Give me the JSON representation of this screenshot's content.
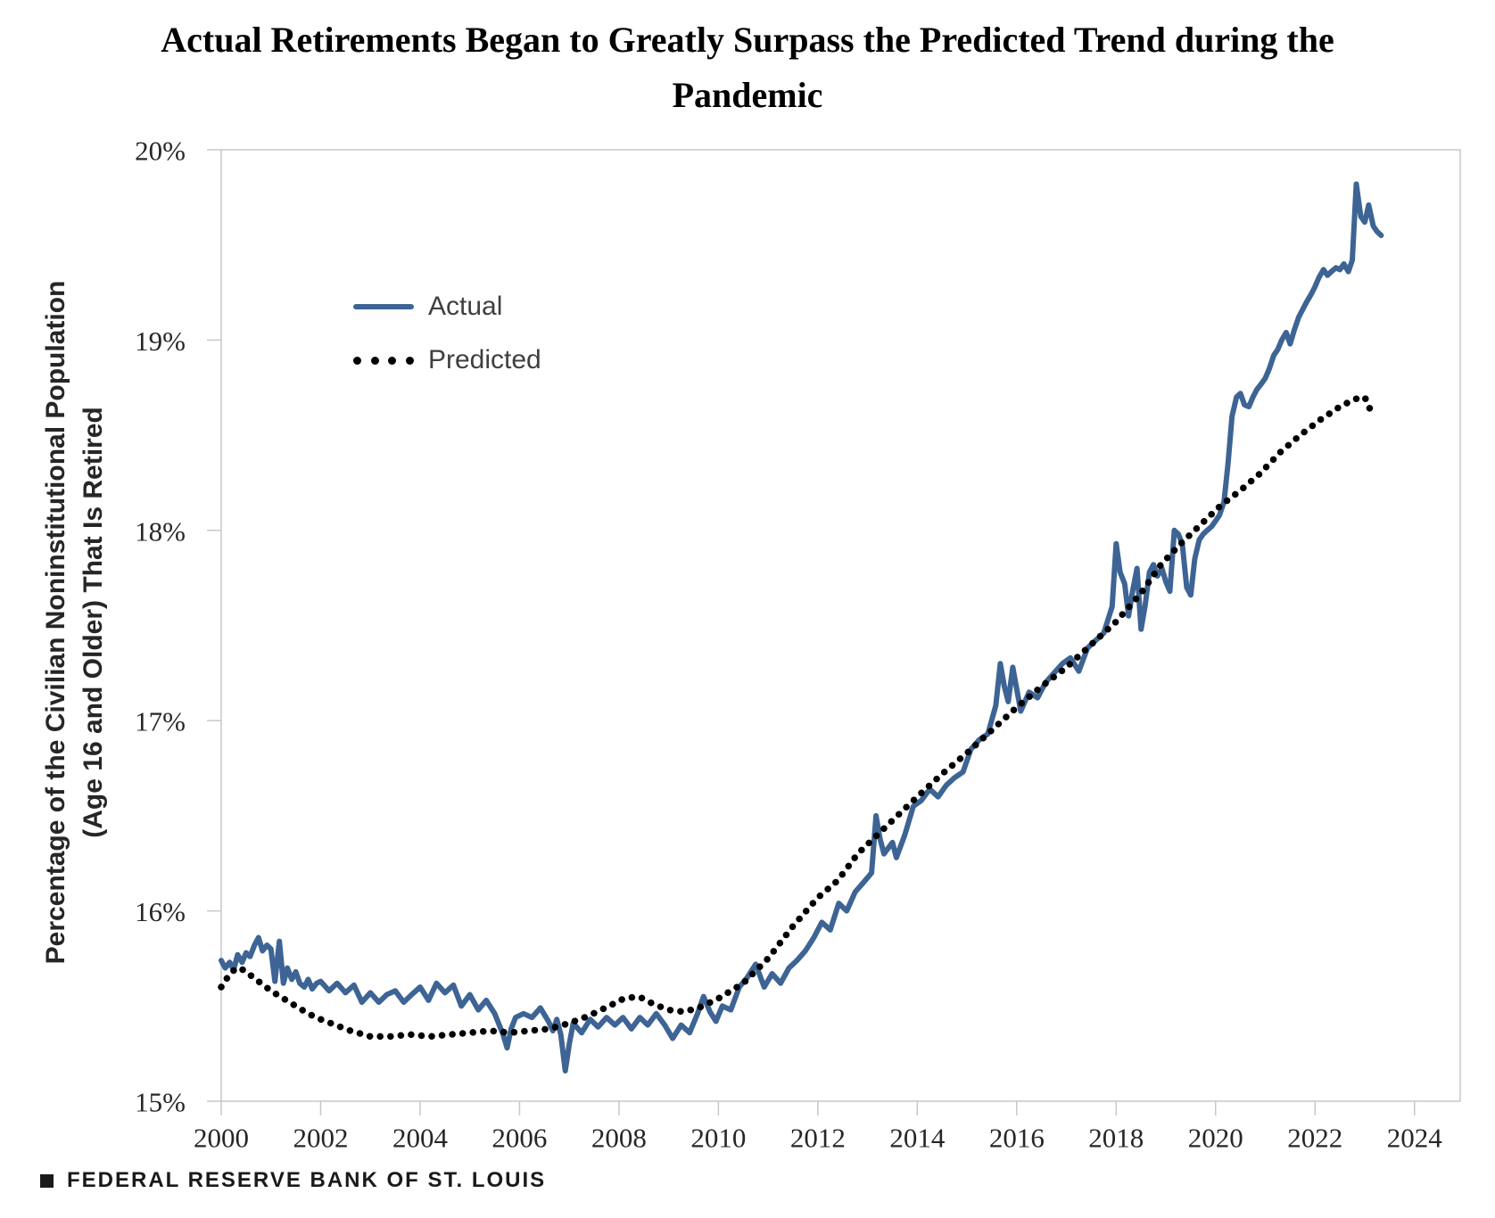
{
  "header": {
    "title": "Actual Retirements Began to Greatly Surpass the Predicted Trend during the Pandemic",
    "title_lines": [
      "Actual Retirements Began to Greatly Surpass the Predicted Trend during the",
      "Pandemic"
    ]
  },
  "footer": {
    "source_label": "FEDERAL RESERVE BANK OF ST. LOUIS"
  },
  "colors": {
    "actual_line": "#3d6494",
    "predicted_line": "#000000",
    "axis": "#c8c8c8",
    "tick_label": "#262626",
    "legend_text": "#3f3f3f",
    "title_text": "#000000"
  },
  "chart_data": {
    "type": "line",
    "title": "Actual Retirements Began to Greatly Surpass the Predicted Trend during the Pandemic",
    "xlabel": "",
    "ylabel": "Percentage of the Civilian Noninstitutional Population (Age 16 and Older) That Is Retired",
    "ylabel_lines": [
      "Percentage of the Civilian Noninstitutional  Population",
      "(Age 16 and Older) That Is Retired"
    ],
    "xlim": [
      2000,
      2024.92
    ],
    "ylim": [
      15,
      20
    ],
    "grid": false,
    "legend_position": "inside-upper-left",
    "x_ticks": [
      2000,
      2002,
      2004,
      2006,
      2008,
      2010,
      2012,
      2014,
      2016,
      2018,
      2020,
      2022,
      2024
    ],
    "x_tick_labels": [
      "2000",
      "2002",
      "2004",
      "2006",
      "2008",
      "2010",
      "2012",
      "2014",
      "2016",
      "2018",
      "2020",
      "2022",
      "2024"
    ],
    "y_ticks": [
      15,
      16,
      17,
      18,
      19,
      20
    ],
    "y_tick_labels": [
      "15%",
      "16%",
      "17%",
      "18%",
      "19%",
      "20%"
    ],
    "series": [
      {
        "name": "Actual",
        "style": "solid",
        "color": "#3d6494",
        "points": [
          [
            2000.0,
            15.74
          ],
          [
            2000.08,
            15.7
          ],
          [
            2000.17,
            15.73
          ],
          [
            2000.25,
            15.69
          ],
          [
            2000.33,
            15.77
          ],
          [
            2000.42,
            15.73
          ],
          [
            2000.5,
            15.78
          ],
          [
            2000.58,
            15.76
          ],
          [
            2000.67,
            15.82
          ],
          [
            2000.75,
            15.86
          ],
          [
            2000.83,
            15.79
          ],
          [
            2000.92,
            15.82
          ],
          [
            2001.0,
            15.8
          ],
          [
            2001.08,
            15.63
          ],
          [
            2001.17,
            15.84
          ],
          [
            2001.25,
            15.62
          ],
          [
            2001.33,
            15.7
          ],
          [
            2001.42,
            15.64
          ],
          [
            2001.5,
            15.68
          ],
          [
            2001.58,
            15.62
          ],
          [
            2001.67,
            15.6
          ],
          [
            2001.75,
            15.64
          ],
          [
            2001.83,
            15.59
          ],
          [
            2001.92,
            15.62
          ],
          [
            2002.0,
            15.63
          ],
          [
            2002.17,
            15.58
          ],
          [
            2002.33,
            15.62
          ],
          [
            2002.5,
            15.57
          ],
          [
            2002.67,
            15.61
          ],
          [
            2002.83,
            15.52
          ],
          [
            2003.0,
            15.57
          ],
          [
            2003.17,
            15.52
          ],
          [
            2003.33,
            15.56
          ],
          [
            2003.5,
            15.58
          ],
          [
            2003.67,
            15.52
          ],
          [
            2003.83,
            15.56
          ],
          [
            2004.0,
            15.6
          ],
          [
            2004.17,
            15.53
          ],
          [
            2004.33,
            15.62
          ],
          [
            2004.5,
            15.57
          ],
          [
            2004.67,
            15.61
          ],
          [
            2004.83,
            15.5
          ],
          [
            2005.0,
            15.56
          ],
          [
            2005.17,
            15.48
          ],
          [
            2005.33,
            15.53
          ],
          [
            2005.5,
            15.46
          ],
          [
            2005.67,
            15.35
          ],
          [
            2005.75,
            15.28
          ],
          [
            2005.83,
            15.38
          ],
          [
            2005.92,
            15.44
          ],
          [
            2006.08,
            15.46
          ],
          [
            2006.25,
            15.44
          ],
          [
            2006.42,
            15.49
          ],
          [
            2006.58,
            15.42
          ],
          [
            2006.67,
            15.37
          ],
          [
            2006.75,
            15.43
          ],
          [
            2006.83,
            15.35
          ],
          [
            2006.92,
            15.16
          ],
          [
            2007.0,
            15.3
          ],
          [
            2007.08,
            15.41
          ],
          [
            2007.25,
            15.36
          ],
          [
            2007.42,
            15.43
          ],
          [
            2007.58,
            15.39
          ],
          [
            2007.75,
            15.44
          ],
          [
            2007.92,
            15.4
          ],
          [
            2008.08,
            15.44
          ],
          [
            2008.25,
            15.38
          ],
          [
            2008.42,
            15.44
          ],
          [
            2008.58,
            15.4
          ],
          [
            2008.75,
            15.46
          ],
          [
            2008.92,
            15.4
          ],
          [
            2009.08,
            15.33
          ],
          [
            2009.25,
            15.4
          ],
          [
            2009.42,
            15.36
          ],
          [
            2009.58,
            15.46
          ],
          [
            2009.7,
            15.55
          ],
          [
            2009.83,
            15.47
          ],
          [
            2009.95,
            15.42
          ],
          [
            2010.08,
            15.5
          ],
          [
            2010.25,
            15.48
          ],
          [
            2010.42,
            15.6
          ],
          [
            2010.58,
            15.65
          ],
          [
            2010.75,
            15.72
          ],
          [
            2010.92,
            15.6
          ],
          [
            2011.08,
            15.67
          ],
          [
            2011.25,
            15.62
          ],
          [
            2011.42,
            15.7
          ],
          [
            2011.58,
            15.74
          ],
          [
            2011.75,
            15.79
          ],
          [
            2011.92,
            15.86
          ],
          [
            2012.08,
            15.94
          ],
          [
            2012.25,
            15.9
          ],
          [
            2012.42,
            16.04
          ],
          [
            2012.58,
            16.0
          ],
          [
            2012.75,
            16.1
          ],
          [
            2012.92,
            16.15
          ],
          [
            2013.08,
            16.2
          ],
          [
            2013.17,
            16.5
          ],
          [
            2013.25,
            16.38
          ],
          [
            2013.33,
            16.3
          ],
          [
            2013.5,
            16.36
          ],
          [
            2013.58,
            16.28
          ],
          [
            2013.75,
            16.4
          ],
          [
            2013.92,
            16.55
          ],
          [
            2014.08,
            16.58
          ],
          [
            2014.25,
            16.64
          ],
          [
            2014.42,
            16.6
          ],
          [
            2014.58,
            16.66
          ],
          [
            2014.75,
            16.7
          ],
          [
            2014.92,
            16.73
          ],
          [
            2015.08,
            16.85
          ],
          [
            2015.25,
            16.9
          ],
          [
            2015.42,
            16.93
          ],
          [
            2015.58,
            17.08
          ],
          [
            2015.67,
            17.3
          ],
          [
            2015.75,
            17.18
          ],
          [
            2015.83,
            17.1
          ],
          [
            2015.92,
            17.28
          ],
          [
            2016.08,
            17.05
          ],
          [
            2016.25,
            17.15
          ],
          [
            2016.42,
            17.12
          ],
          [
            2016.58,
            17.2
          ],
          [
            2016.75,
            17.25
          ],
          [
            2016.92,
            17.3
          ],
          [
            2017.08,
            17.33
          ],
          [
            2017.25,
            17.26
          ],
          [
            2017.42,
            17.38
          ],
          [
            2017.58,
            17.42
          ],
          [
            2017.75,
            17.46
          ],
          [
            2017.92,
            17.6
          ],
          [
            2018.0,
            17.93
          ],
          [
            2018.08,
            17.78
          ],
          [
            2018.17,
            17.72
          ],
          [
            2018.25,
            17.55
          ],
          [
            2018.33,
            17.68
          ],
          [
            2018.42,
            17.8
          ],
          [
            2018.5,
            17.48
          ],
          [
            2018.58,
            17.6
          ],
          [
            2018.67,
            17.78
          ],
          [
            2018.75,
            17.82
          ],
          [
            2018.83,
            17.76
          ],
          [
            2018.92,
            17.8
          ],
          [
            2019.0,
            17.73
          ],
          [
            2019.08,
            17.68
          ],
          [
            2019.17,
            18.0
          ],
          [
            2019.25,
            17.98
          ],
          [
            2019.33,
            17.93
          ],
          [
            2019.42,
            17.7
          ],
          [
            2019.5,
            17.66
          ],
          [
            2019.58,
            17.85
          ],
          [
            2019.67,
            17.95
          ],
          [
            2019.75,
            17.98
          ],
          [
            2019.83,
            18.0
          ],
          [
            2019.92,
            18.02
          ],
          [
            2020.0,
            18.05
          ],
          [
            2020.08,
            18.08
          ],
          [
            2020.17,
            18.15
          ],
          [
            2020.25,
            18.35
          ],
          [
            2020.33,
            18.6
          ],
          [
            2020.42,
            18.7
          ],
          [
            2020.5,
            18.72
          ],
          [
            2020.58,
            18.66
          ],
          [
            2020.67,
            18.65
          ],
          [
            2020.75,
            18.7
          ],
          [
            2020.83,
            18.74
          ],
          [
            2020.92,
            18.77
          ],
          [
            2021.0,
            18.8
          ],
          [
            2021.08,
            18.85
          ],
          [
            2021.17,
            18.92
          ],
          [
            2021.25,
            18.95
          ],
          [
            2021.33,
            19.0
          ],
          [
            2021.42,
            19.04
          ],
          [
            2021.5,
            18.98
          ],
          [
            2021.58,
            19.05
          ],
          [
            2021.67,
            19.12
          ],
          [
            2021.75,
            19.16
          ],
          [
            2021.83,
            19.2
          ],
          [
            2021.92,
            19.24
          ],
          [
            2022.0,
            19.28
          ],
          [
            2022.08,
            19.33
          ],
          [
            2022.17,
            19.37
          ],
          [
            2022.25,
            19.34
          ],
          [
            2022.33,
            19.36
          ],
          [
            2022.42,
            19.38
          ],
          [
            2022.5,
            19.37
          ],
          [
            2022.58,
            19.4
          ],
          [
            2022.67,
            19.36
          ],
          [
            2022.75,
            19.42
          ],
          [
            2022.83,
            19.82
          ],
          [
            2022.92,
            19.65
          ],
          [
            2023.0,
            19.62
          ],
          [
            2023.08,
            19.71
          ],
          [
            2023.17,
            19.6
          ],
          [
            2023.25,
            19.57
          ],
          [
            2023.33,
            19.55
          ]
        ]
      },
      {
        "name": "Predicted",
        "style": "dotted",
        "color": "#000000",
        "points": [
          [
            2000.0,
            15.6
          ],
          [
            2000.15,
            15.66
          ],
          [
            2000.3,
            15.7
          ],
          [
            2000.45,
            15.69
          ],
          [
            2000.6,
            15.66
          ],
          [
            2000.8,
            15.62
          ],
          [
            2001.0,
            15.58
          ],
          [
            2001.25,
            15.54
          ],
          [
            2001.5,
            15.5
          ],
          [
            2001.75,
            15.46
          ],
          [
            2002.0,
            15.43
          ],
          [
            2002.3,
            15.4
          ],
          [
            2002.6,
            15.37
          ],
          [
            2003.0,
            15.34
          ],
          [
            2003.4,
            15.34
          ],
          [
            2003.8,
            15.35
          ],
          [
            2004.2,
            15.34
          ],
          [
            2004.6,
            15.35
          ],
          [
            2005.0,
            15.36
          ],
          [
            2005.4,
            15.37
          ],
          [
            2005.8,
            15.36
          ],
          [
            2006.2,
            15.37
          ],
          [
            2006.6,
            15.38
          ],
          [
            2007.0,
            15.41
          ],
          [
            2007.4,
            15.45
          ],
          [
            2007.8,
            15.5
          ],
          [
            2008.1,
            15.54
          ],
          [
            2008.4,
            15.55
          ],
          [
            2008.7,
            15.51
          ],
          [
            2009.0,
            15.48
          ],
          [
            2009.3,
            15.47
          ],
          [
            2009.6,
            15.49
          ],
          [
            2010.0,
            15.54
          ],
          [
            2010.5,
            15.62
          ],
          [
            2011.0,
            15.75
          ],
          [
            2011.5,
            15.92
          ],
          [
            2012.0,
            16.07
          ],
          [
            2012.4,
            16.16
          ],
          [
            2012.8,
            16.3
          ],
          [
            2013.2,
            16.4
          ],
          [
            2013.6,
            16.5
          ],
          [
            2014.0,
            16.6
          ],
          [
            2014.5,
            16.72
          ],
          [
            2015.0,
            16.83
          ],
          [
            2015.5,
            16.95
          ],
          [
            2016.0,
            17.07
          ],
          [
            2016.5,
            17.18
          ],
          [
            2017.0,
            17.28
          ],
          [
            2017.5,
            17.4
          ],
          [
            2018.0,
            17.52
          ],
          [
            2018.5,
            17.67
          ],
          [
            2018.9,
            17.82
          ],
          [
            2019.3,
            17.93
          ],
          [
            2019.7,
            18.03
          ],
          [
            2020.1,
            18.13
          ],
          [
            2020.5,
            18.21
          ],
          [
            2020.9,
            18.3
          ],
          [
            2021.3,
            18.41
          ],
          [
            2021.7,
            18.5
          ],
          [
            2022.1,
            18.58
          ],
          [
            2022.5,
            18.65
          ],
          [
            2022.8,
            18.69
          ],
          [
            2023.0,
            18.7
          ],
          [
            2023.1,
            18.64
          ]
        ]
      }
    ]
  }
}
